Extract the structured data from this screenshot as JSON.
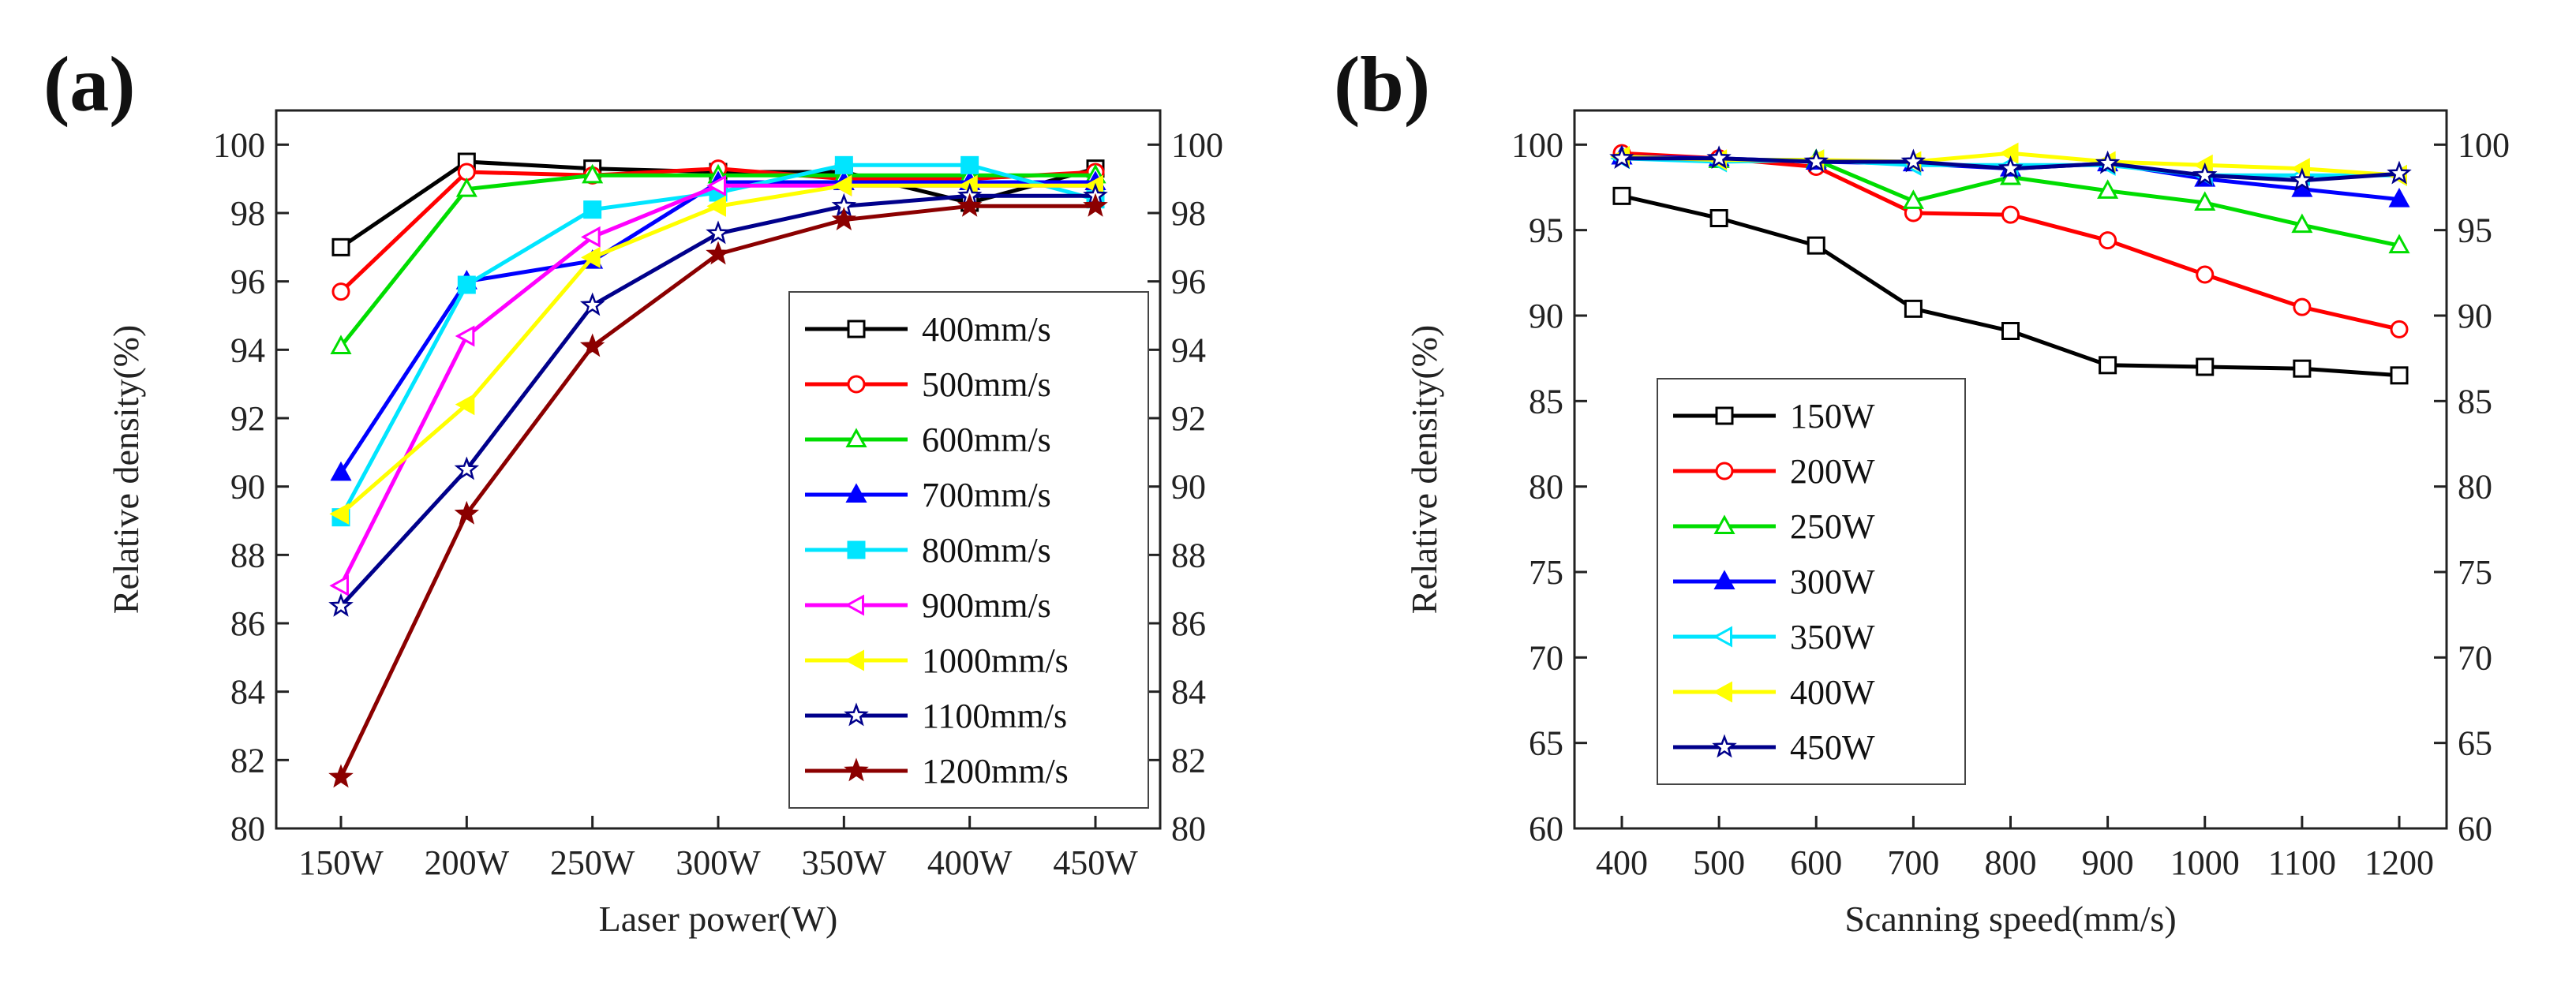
{
  "chart_data": [
    {
      "panel_label": "(a)",
      "type": "line",
      "xlabel": "Laser power(W)",
      "ylabel": "Relative density(%)",
      "categories": [
        "150W",
        "200W",
        "250W",
        "300W",
        "350W",
        "400W",
        "450W"
      ],
      "ylim": [
        80,
        101
      ],
      "yticks": [
        80,
        82,
        84,
        86,
        88,
        90,
        92,
        94,
        96,
        98,
        100
      ],
      "right_axis": true,
      "legend_position": "bottom-right",
      "series": [
        {
          "name": "400mm/s",
          "color": "#000000",
          "marker": "square-open",
          "values": [
            97.0,
            99.5,
            99.3,
            99.2,
            99.2,
            98.3,
            99.3
          ]
        },
        {
          "name": "500mm/s",
          "color": "#ff0000",
          "marker": "circle-open",
          "values": [
            95.7,
            99.2,
            99.1,
            99.3,
            99.0,
            99.0,
            99.2
          ]
        },
        {
          "name": "600mm/s",
          "color": "#00dd00",
          "marker": "triangle-up-open",
          "values": [
            94.1,
            98.7,
            99.1,
            99.1,
            99.1,
            99.1,
            99.1
          ]
        },
        {
          "name": "700mm/s",
          "color": "#0000ff",
          "marker": "triangle-up-filled",
          "values": [
            90.4,
            96.0,
            96.6,
            98.9,
            98.9,
            98.9,
            98.9
          ]
        },
        {
          "name": "800mm/s",
          "color": "#00e5ff",
          "marker": "square-filled",
          "values": [
            89.1,
            95.9,
            98.1,
            98.6,
            99.4,
            99.4,
            98.4
          ]
        },
        {
          "name": "900mm/s",
          "color": "#ff00ff",
          "marker": "triangle-left-open",
          "values": [
            87.1,
            94.4,
            97.3,
            98.8,
            98.8,
            98.8,
            98.8
          ]
        },
        {
          "name": "1000mm/s",
          "color": "#ffff00",
          "marker": "triangle-left-filled",
          "values": [
            89.2,
            92.4,
            96.7,
            98.2,
            98.8,
            98.8,
            98.8
          ]
        },
        {
          "name": "1100mm/s",
          "color": "#00008b",
          "marker": "star-open",
          "values": [
            86.5,
            90.5,
            95.3,
            97.4,
            98.2,
            98.5,
            98.5
          ]
        },
        {
          "name": "1200mm/s",
          "color": "#8b0000",
          "marker": "star-filled",
          "values": [
            81.5,
            89.2,
            94.1,
            96.8,
            97.8,
            98.2,
            98.2
          ]
        }
      ]
    },
    {
      "panel_label": "(b)",
      "type": "line",
      "xlabel": "Scanning speed(mm/s)",
      "ylabel": "Relative density(%)",
      "categories": [
        "400",
        "500",
        "600",
        "700",
        "800",
        "900",
        "1000",
        "1100",
        "1200"
      ],
      "ylim": [
        60,
        102
      ],
      "yticks": [
        60,
        65,
        70,
        75,
        80,
        85,
        90,
        95,
        100
      ],
      "right_axis": true,
      "legend_position": "middle-left",
      "series": [
        {
          "name": "150W",
          "color": "#000000",
          "marker": "square-open",
          "values": [
            97.0,
            95.7,
            94.1,
            90.4,
            89.1,
            87.1,
            87.0,
            86.9,
            86.5
          ]
        },
        {
          "name": "200W",
          "color": "#ff0000",
          "marker": "circle-open",
          "values": [
            99.5,
            99.2,
            98.7,
            96.0,
            95.9,
            94.4,
            92.4,
            90.5,
            89.2
          ]
        },
        {
          "name": "250W",
          "color": "#00dd00",
          "marker": "triangle-up-open",
          "values": [
            99.3,
            99.1,
            99.1,
            96.7,
            98.1,
            97.3,
            96.6,
            95.3,
            94.1
          ]
        },
        {
          "name": "300W",
          "color": "#0000ff",
          "marker": "triangle-up-filled",
          "values": [
            99.3,
            99.2,
            99.0,
            98.9,
            98.6,
            98.9,
            98.0,
            97.4,
            96.8
          ]
        },
        {
          "name": "350W",
          "color": "#00e5ff",
          "marker": "triangle-left-open",
          "values": [
            99.2,
            99.0,
            99.1,
            98.8,
            98.8,
            98.8,
            98.2,
            98.2,
            98.2
          ]
        },
        {
          "name": "400W",
          "color": "#ffff00",
          "marker": "triangle-left-filled",
          "values": [
            99.3,
            99.1,
            99.1,
            99.0,
            99.5,
            99.0,
            98.8,
            98.6,
            98.2
          ]
        },
        {
          "name": "450W",
          "color": "#00008b",
          "marker": "star-open",
          "values": [
            99.2,
            99.2,
            99.0,
            99.0,
            98.6,
            98.9,
            98.2,
            97.9,
            98.3
          ]
        }
      ]
    }
  ]
}
